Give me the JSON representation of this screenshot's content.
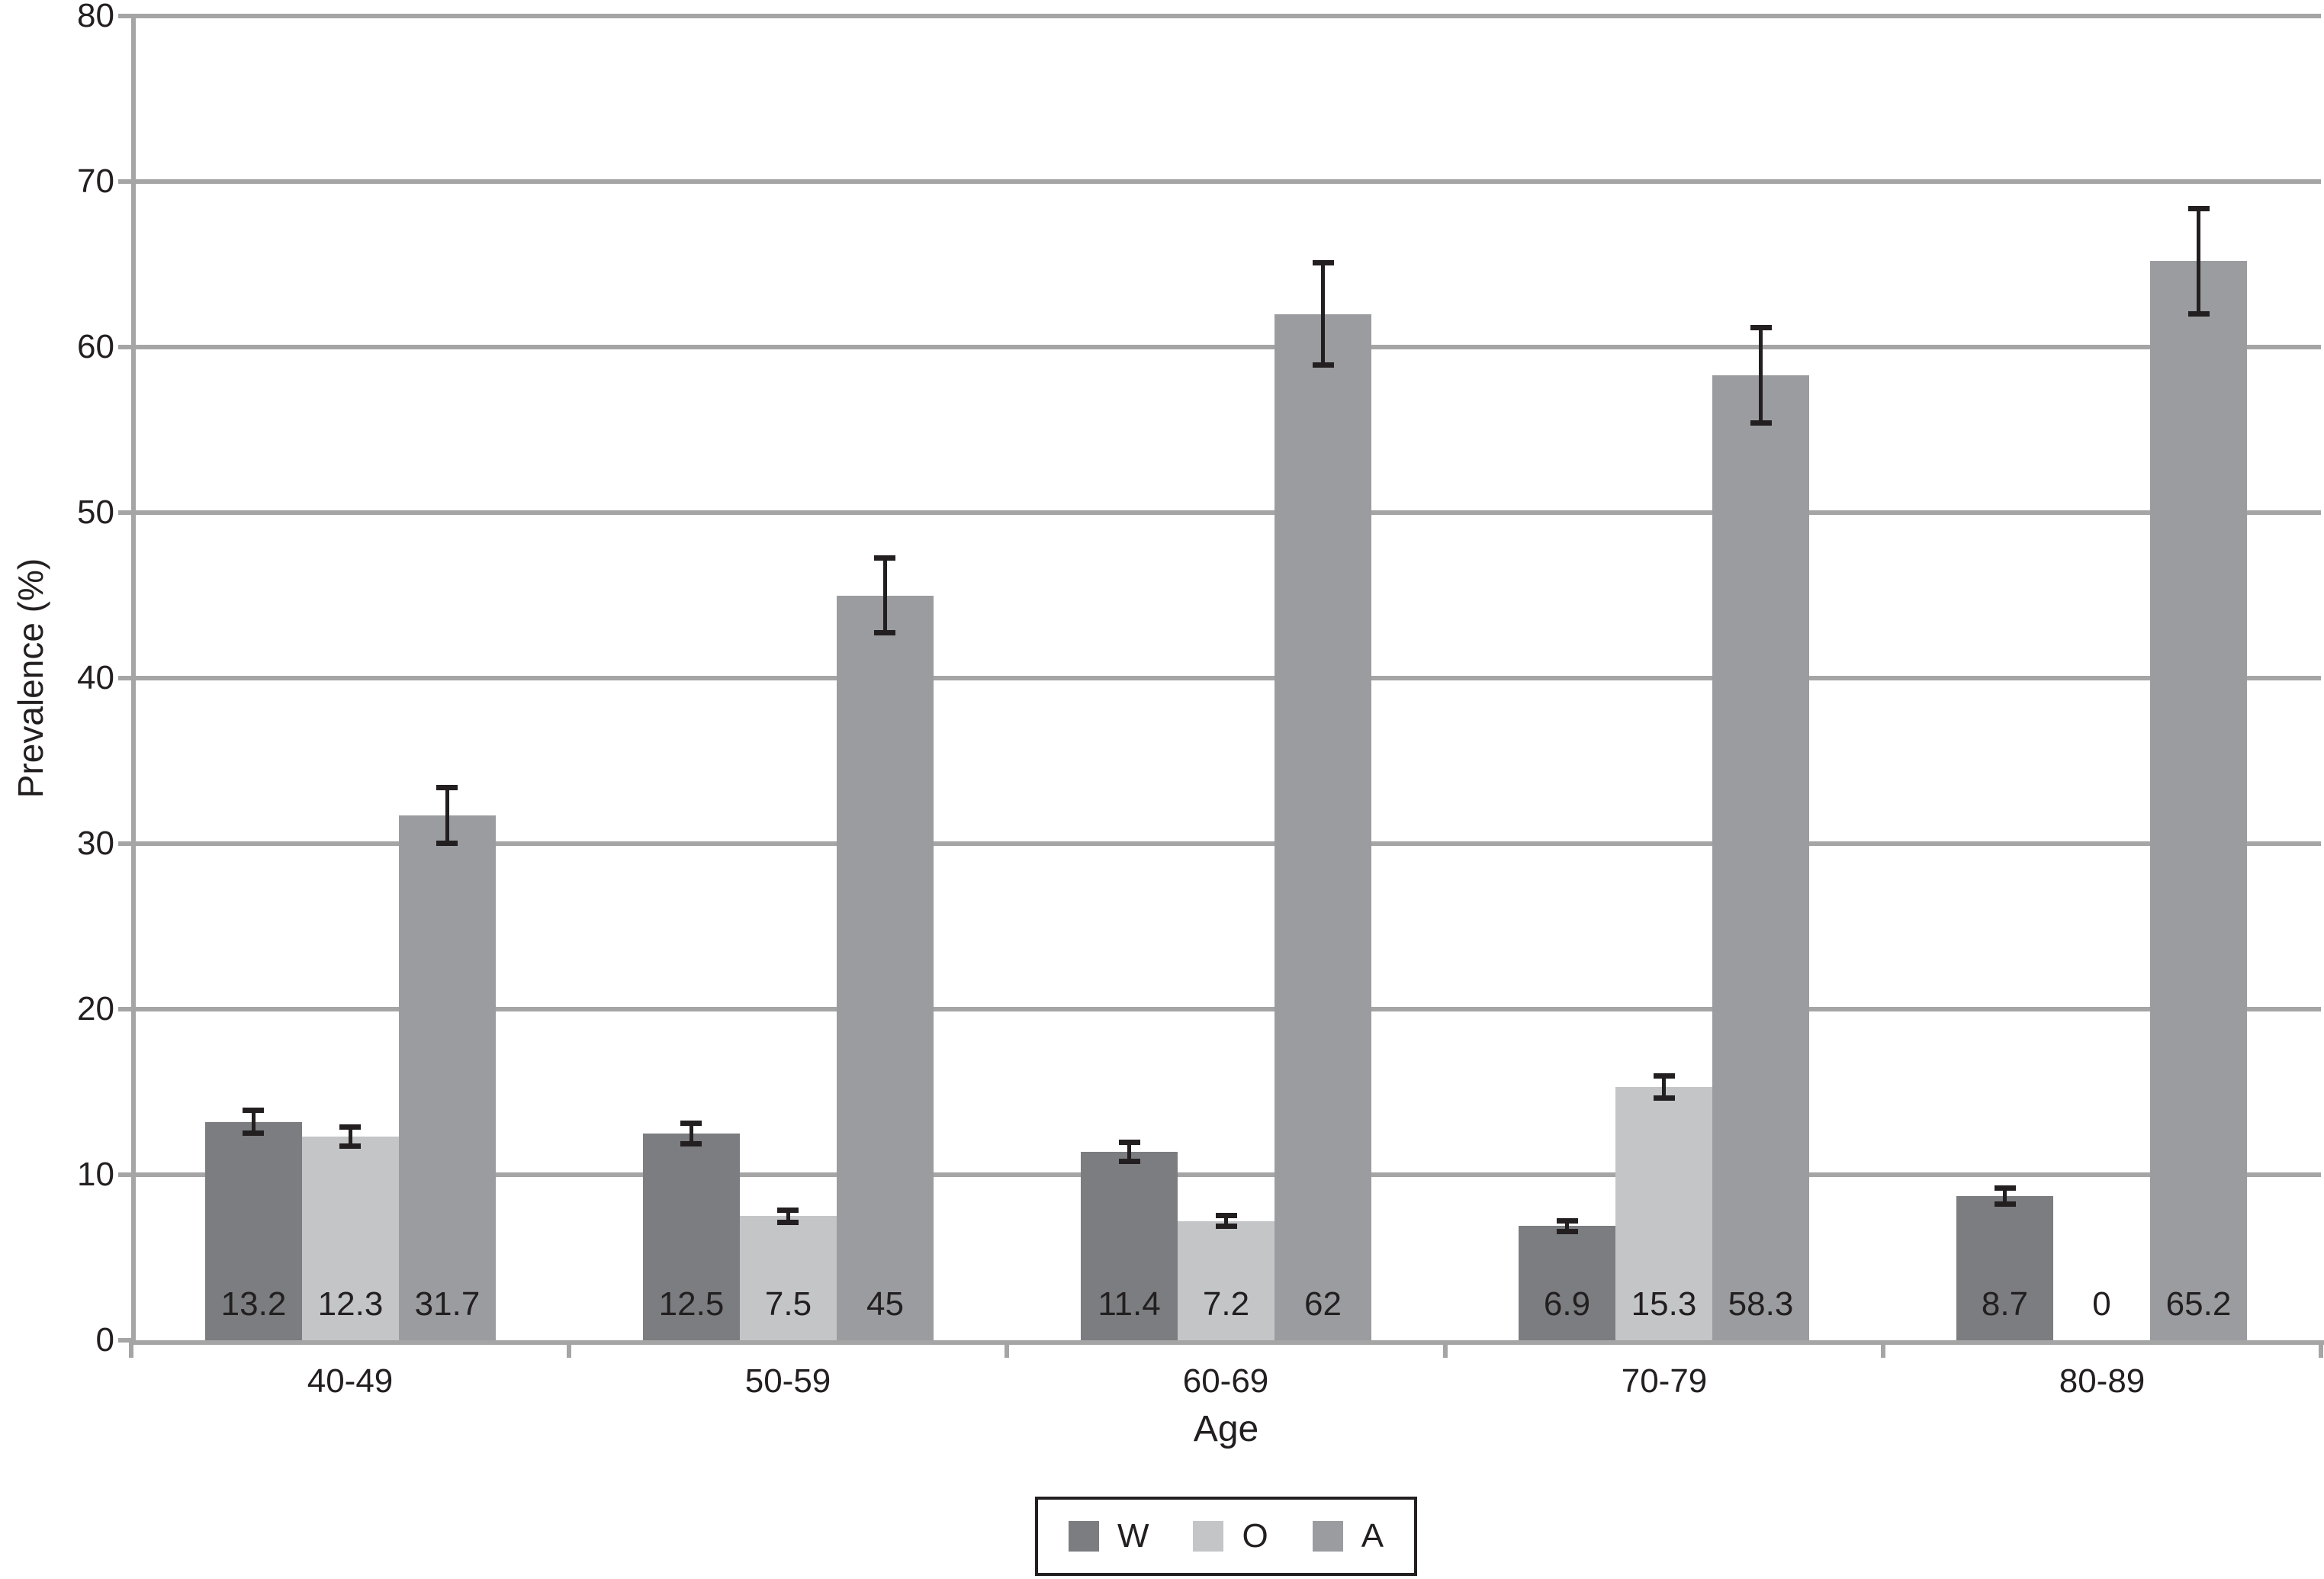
{
  "chart_data": {
    "type": "bar",
    "title": "",
    "xlabel": "Age",
    "ylabel": "Prevalence (%)",
    "categories": [
      "40-49",
      "50-59",
      "60-69",
      "70-79",
      "80-89"
    ],
    "series": [
      {
        "name": "W",
        "color": "#7b7d80",
        "values": [
          13.2,
          12.5,
          11.4,
          6.9,
          8.7
        ],
        "labels": [
          "13.2",
          "12.5",
          "11.4",
          "6.9",
          "8.7"
        ],
        "errors": [
          0.7,
          0.65,
          0.6,
          0.35,
          0.5
        ]
      },
      {
        "name": "O",
        "color": "#c3c5c7",
        "values": [
          12.3,
          7.5,
          7.2,
          15.3,
          0
        ],
        "labels": [
          "12.3",
          "7.5",
          "7.2",
          "15.3",
          "0"
        ],
        "errors": [
          0.6,
          0.4,
          0.35,
          0.7,
          0
        ]
      },
      {
        "name": "A",
        "color": "#9a9c9f",
        "values": [
          31.7,
          45,
          62,
          58.3,
          65.2
        ],
        "labels": [
          "31.7",
          "45",
          "62",
          "58.3",
          "65.2"
        ],
        "errors": [
          1.7,
          2.3,
          3.1,
          2.9,
          3.2
        ]
      }
    ],
    "ylim": [
      0,
      80
    ],
    "yticks": [
      0,
      10,
      20,
      30,
      40,
      50,
      60,
      70,
      80
    ],
    "grid": true,
    "legend_position": "bottom",
    "data_labels": true
  },
  "style": {
    "background": "#ffffff",
    "grid_color": "#a5a5a5",
    "axis_color": "#a5a5a5",
    "error_bar_color": "#231f20",
    "text_color": "#231f20",
    "legend_border_color": "#231f20"
  }
}
